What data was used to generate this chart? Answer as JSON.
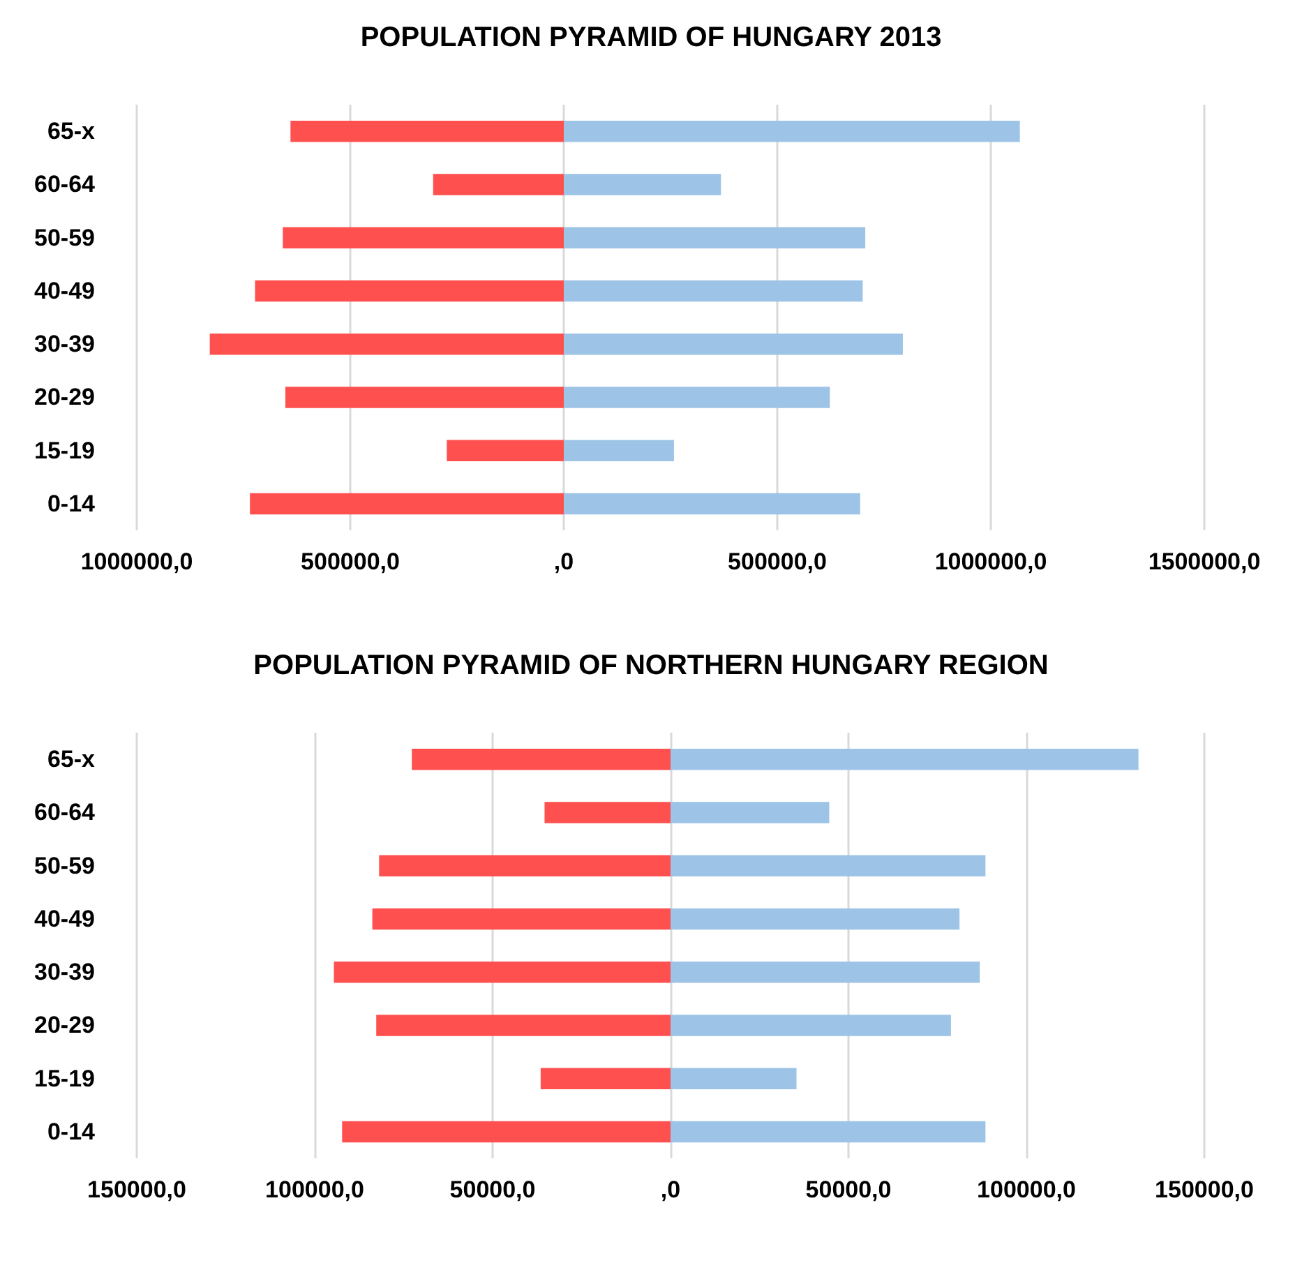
{
  "chart_data": [
    {
      "type": "bar",
      "title": "POPULATION PYRAMID OF HUNGARY 2013",
      "orientation": "horizontal",
      "stacked": true,
      "grid": "x",
      "categories": [
        "65-x",
        "60-64",
        "50-59",
        "40-49",
        "30-39",
        "20-29",
        "15-19",
        "0-14"
      ],
      "series": [
        {
          "color": "#ff5050",
          "values": [
            -640000,
            -306000,
            -658000,
            -723000,
            -829000,
            -652000,
            -274000,
            -735000
          ]
        },
        {
          "color": "#9dc3e6",
          "values": [
            1068000,
            368000,
            706000,
            700000,
            794000,
            623000,
            258000,
            694000
          ]
        }
      ],
      "xlim": [
        -1000000,
        1500000
      ],
      "xticks": [
        {
          "value": -1000000,
          "label": "1000000,0"
        },
        {
          "value": -500000,
          "label": "500000,0"
        },
        {
          "value": 0,
          "label": ",0"
        },
        {
          "value": 500000,
          "label": "500000,0"
        },
        {
          "value": 1000000,
          "label": "1000000,0"
        },
        {
          "value": 1500000,
          "label": "1500000,0"
        }
      ]
    },
    {
      "type": "bar",
      "title": "POPULATION PYRAMID OF NORTHERN HUNGARY REGION",
      "orientation": "horizontal",
      "stacked": true,
      "grid": "x",
      "categories": [
        "65-x",
        "60-64",
        "50-59",
        "40-49",
        "30-39",
        "20-29",
        "15-19",
        "0-14"
      ],
      "series": [
        {
          "color": "#ff5050",
          "values": [
            -72700,
            -35400,
            -81900,
            -83800,
            -94600,
            -82700,
            -36500,
            -92300
          ]
        },
        {
          "color": "#9dc3e6",
          "values": [
            131500,
            44600,
            88500,
            81200,
            86900,
            78800,
            35400,
            88500
          ]
        }
      ],
      "xlim": [
        -150000,
        150000
      ],
      "xticks": [
        {
          "value": -150000,
          "label": "150000,0"
        },
        {
          "value": -100000,
          "label": "100000,0"
        },
        {
          "value": -50000,
          "label": "50000,0"
        },
        {
          "value": 0,
          "label": ",0"
        },
        {
          "value": 50000,
          "label": "50000,0"
        },
        {
          "value": 100000,
          "label": "100000,0"
        },
        {
          "value": 150000,
          "label": "150000,0"
        }
      ]
    }
  ]
}
